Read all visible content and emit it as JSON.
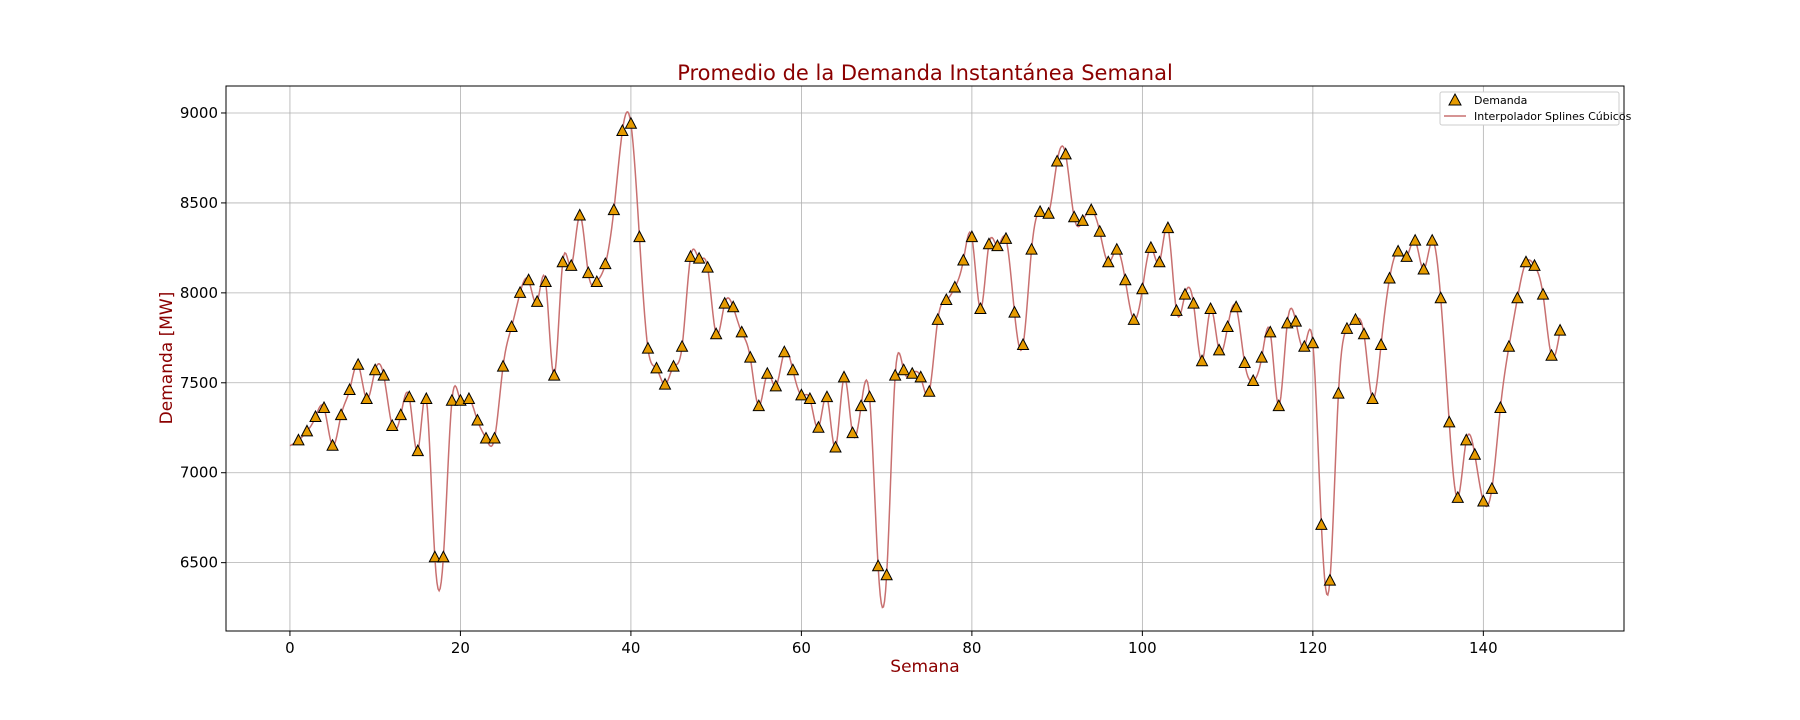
{
  "chart_data": {
    "type": "scatter",
    "title": "Promedio de la Demanda Instantánea Semanal",
    "xlabel": "Semana",
    "ylabel": "Demanda [MW]",
    "xlim": [
      -7.5,
      156.5
    ],
    "ylim": [
      6120,
      9150
    ],
    "xticks": [
      0,
      20,
      40,
      60,
      80,
      100,
      120,
      140
    ],
    "yticks": [
      6500,
      7000,
      7500,
      8000,
      8500,
      9000
    ],
    "grid": true,
    "legend_position": "top-right",
    "colors": {
      "marker_fill": "#e69b00",
      "marker_edge": "#000000",
      "line": "#c87070",
      "label": "#8b0000"
    },
    "series": [
      {
        "name": "Demanda",
        "kind": "scatter",
        "marker": "triangle",
        "x": [
          1,
          2,
          3,
          4,
          5,
          6,
          7,
          8,
          9,
          10,
          11,
          12,
          13,
          14,
          15,
          16,
          17,
          18,
          19,
          20,
          21,
          22,
          23,
          24,
          25,
          26,
          27,
          28,
          29,
          30,
          31,
          32,
          33,
          34,
          35,
          36,
          37,
          38,
          39,
          40,
          41,
          42,
          43,
          44,
          45,
          46,
          47,
          48,
          49,
          50,
          51,
          52,
          53,
          54,
          55,
          56,
          57,
          58,
          59,
          60,
          61,
          62,
          63,
          64,
          65,
          66,
          67,
          68,
          69,
          70,
          71,
          72,
          73,
          74,
          75,
          76,
          77,
          78,
          79,
          80,
          81,
          82,
          83,
          84,
          85,
          86,
          87,
          88,
          89,
          90,
          91,
          92,
          93,
          94,
          95,
          96,
          97,
          98,
          99,
          100,
          101,
          102,
          103,
          104,
          105,
          106,
          107,
          108,
          109,
          110,
          111,
          112,
          113,
          114,
          115,
          116,
          117,
          118,
          119,
          120,
          121,
          122,
          123,
          124,
          125,
          126,
          127,
          128,
          129,
          130,
          131,
          132,
          133,
          134,
          135,
          136,
          137,
          138,
          139,
          140,
          141,
          142,
          143,
          144,
          145,
          146,
          147,
          148,
          149
        ],
        "y": [
          7180,
          7230,
          7310,
          7360,
          7150,
          7320,
          7460,
          7600,
          7410,
          7570,
          7540,
          7260,
          7320,
          7420,
          7120,
          7410,
          6530,
          6530,
          7400,
          7400,
          7410,
          7290,
          7190,
          7190,
          7590,
          7810,
          8000,
          8070,
          7950,
          8060,
          7540,
          8170,
          8150,
          8430,
          8110,
          8060,
          8160,
          8460,
          8900,
          8940,
          8310,
          7690,
          7580,
          7490,
          7590,
          7700,
          8200,
          8190,
          8140,
          7770,
          7940,
          7920,
          7780,
          7640,
          7370,
          7550,
          7480,
          7670,
          7570,
          7430,
          7410,
          7250,
          7420,
          7140,
          7530,
          7220,
          7370,
          7420,
          6480,
          6430,
          7540,
          7570,
          7550,
          7530,
          7450,
          7850,
          7960,
          8030,
          8180,
          8310,
          7910,
          8270,
          8260,
          8300,
          7890,
          7710,
          8240,
          8450,
          8440,
          8730,
          8770,
          8420,
          8400,
          8460,
          8340,
          8170,
          8240,
          8070,
          7850,
          8020,
          8250,
          8170,
          8360,
          7900,
          7990,
          7940,
          7620,
          7910,
          7680,
          7810,
          7920,
          7610,
          7510,
          7640,
          7780,
          7370,
          7830,
          7840,
          7700,
          7720,
          6710,
          6400,
          7440,
          7800,
          7850,
          7770,
          7410,
          7710,
          8080,
          8230,
          8200,
          8290,
          8130,
          8290,
          7970,
          7280,
          6860,
          7180,
          7100,
          6840,
          6910,
          7360,
          7700,
          7970,
          8170,
          8150,
          7990,
          7650,
          7790
        ]
      },
      {
        "name": "Interpolador Splines Cúbicos",
        "kind": "line"
      }
    ]
  }
}
